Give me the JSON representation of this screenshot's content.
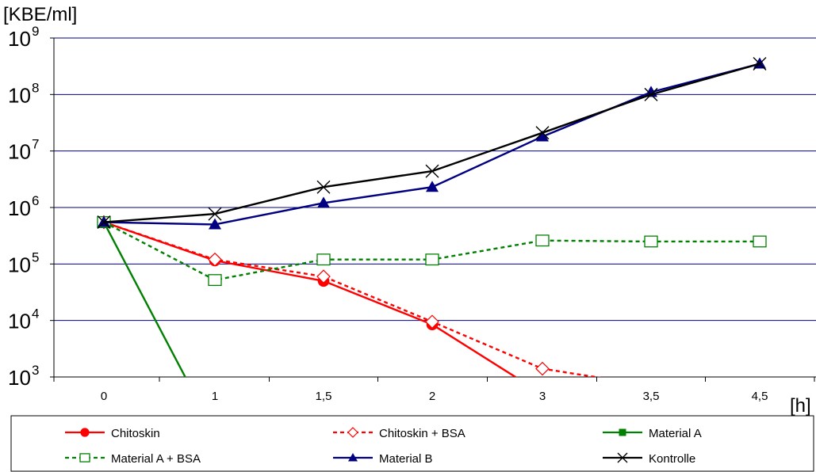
{
  "chart_data": {
    "type": "line",
    "title": "",
    "ylabel": "[KBE/ml]",
    "xlabel": "[h]",
    "categories": [
      "0",
      "1",
      "1,5",
      "2",
      "3",
      "3,5",
      "4,5"
    ],
    "y_scale": "log",
    "ylim": [
      1000,
      1000000000
    ],
    "y_tick_base": "10",
    "y_ticks": [
      {
        "exp": "3",
        "value": 1000
      },
      {
        "exp": "4",
        "value": 10000
      },
      {
        "exp": "5",
        "value": 100000
      },
      {
        "exp": "6",
        "value": 1000000
      },
      {
        "exp": "7",
        "value": 10000000
      },
      {
        "exp": "8",
        "value": 100000000
      },
      {
        "exp": "9",
        "value": 1000000000
      }
    ],
    "grid": true,
    "legend_position": "bottom",
    "series": [
      {
        "name": "Chitoskin",
        "color": "#ff0000",
        "line_style": "solid",
        "marker": "filled-circle",
        "values": [
          550000,
          115000,
          50000,
          8500,
          500,
          null,
          null
        ]
      },
      {
        "name": "Chitoskin + BSA",
        "color": "#ff0000",
        "line_style": "dotted",
        "marker": "hollow-diamond",
        "values": [
          550000,
          120000,
          60000,
          9500,
          1400,
          700,
          null
        ]
      },
      {
        "name": "Material A",
        "color": "#008000",
        "line_style": "solid",
        "marker": "filled-square",
        "values": [
          550000,
          100,
          null,
          null,
          null,
          null,
          null
        ]
      },
      {
        "name": "Material A + BSA",
        "color": "#008000",
        "line_style": "dotted",
        "marker": "hollow-square",
        "values": [
          550000,
          52000,
          120000,
          120000,
          260000,
          250000,
          250000
        ]
      },
      {
        "name": "Material B",
        "color": "#000080",
        "line_style": "solid",
        "marker": "filled-triangle",
        "values": [
          550000,
          500000,
          1200000,
          2300000,
          18000000,
          110000000,
          350000000
        ]
      },
      {
        "name": "Kontrolle",
        "color": "#000000",
        "line_style": "solid",
        "marker": "x",
        "values": [
          550000,
          770000,
          2300000,
          4400000,
          21000000,
          100000000,
          350000000
        ]
      }
    ]
  }
}
